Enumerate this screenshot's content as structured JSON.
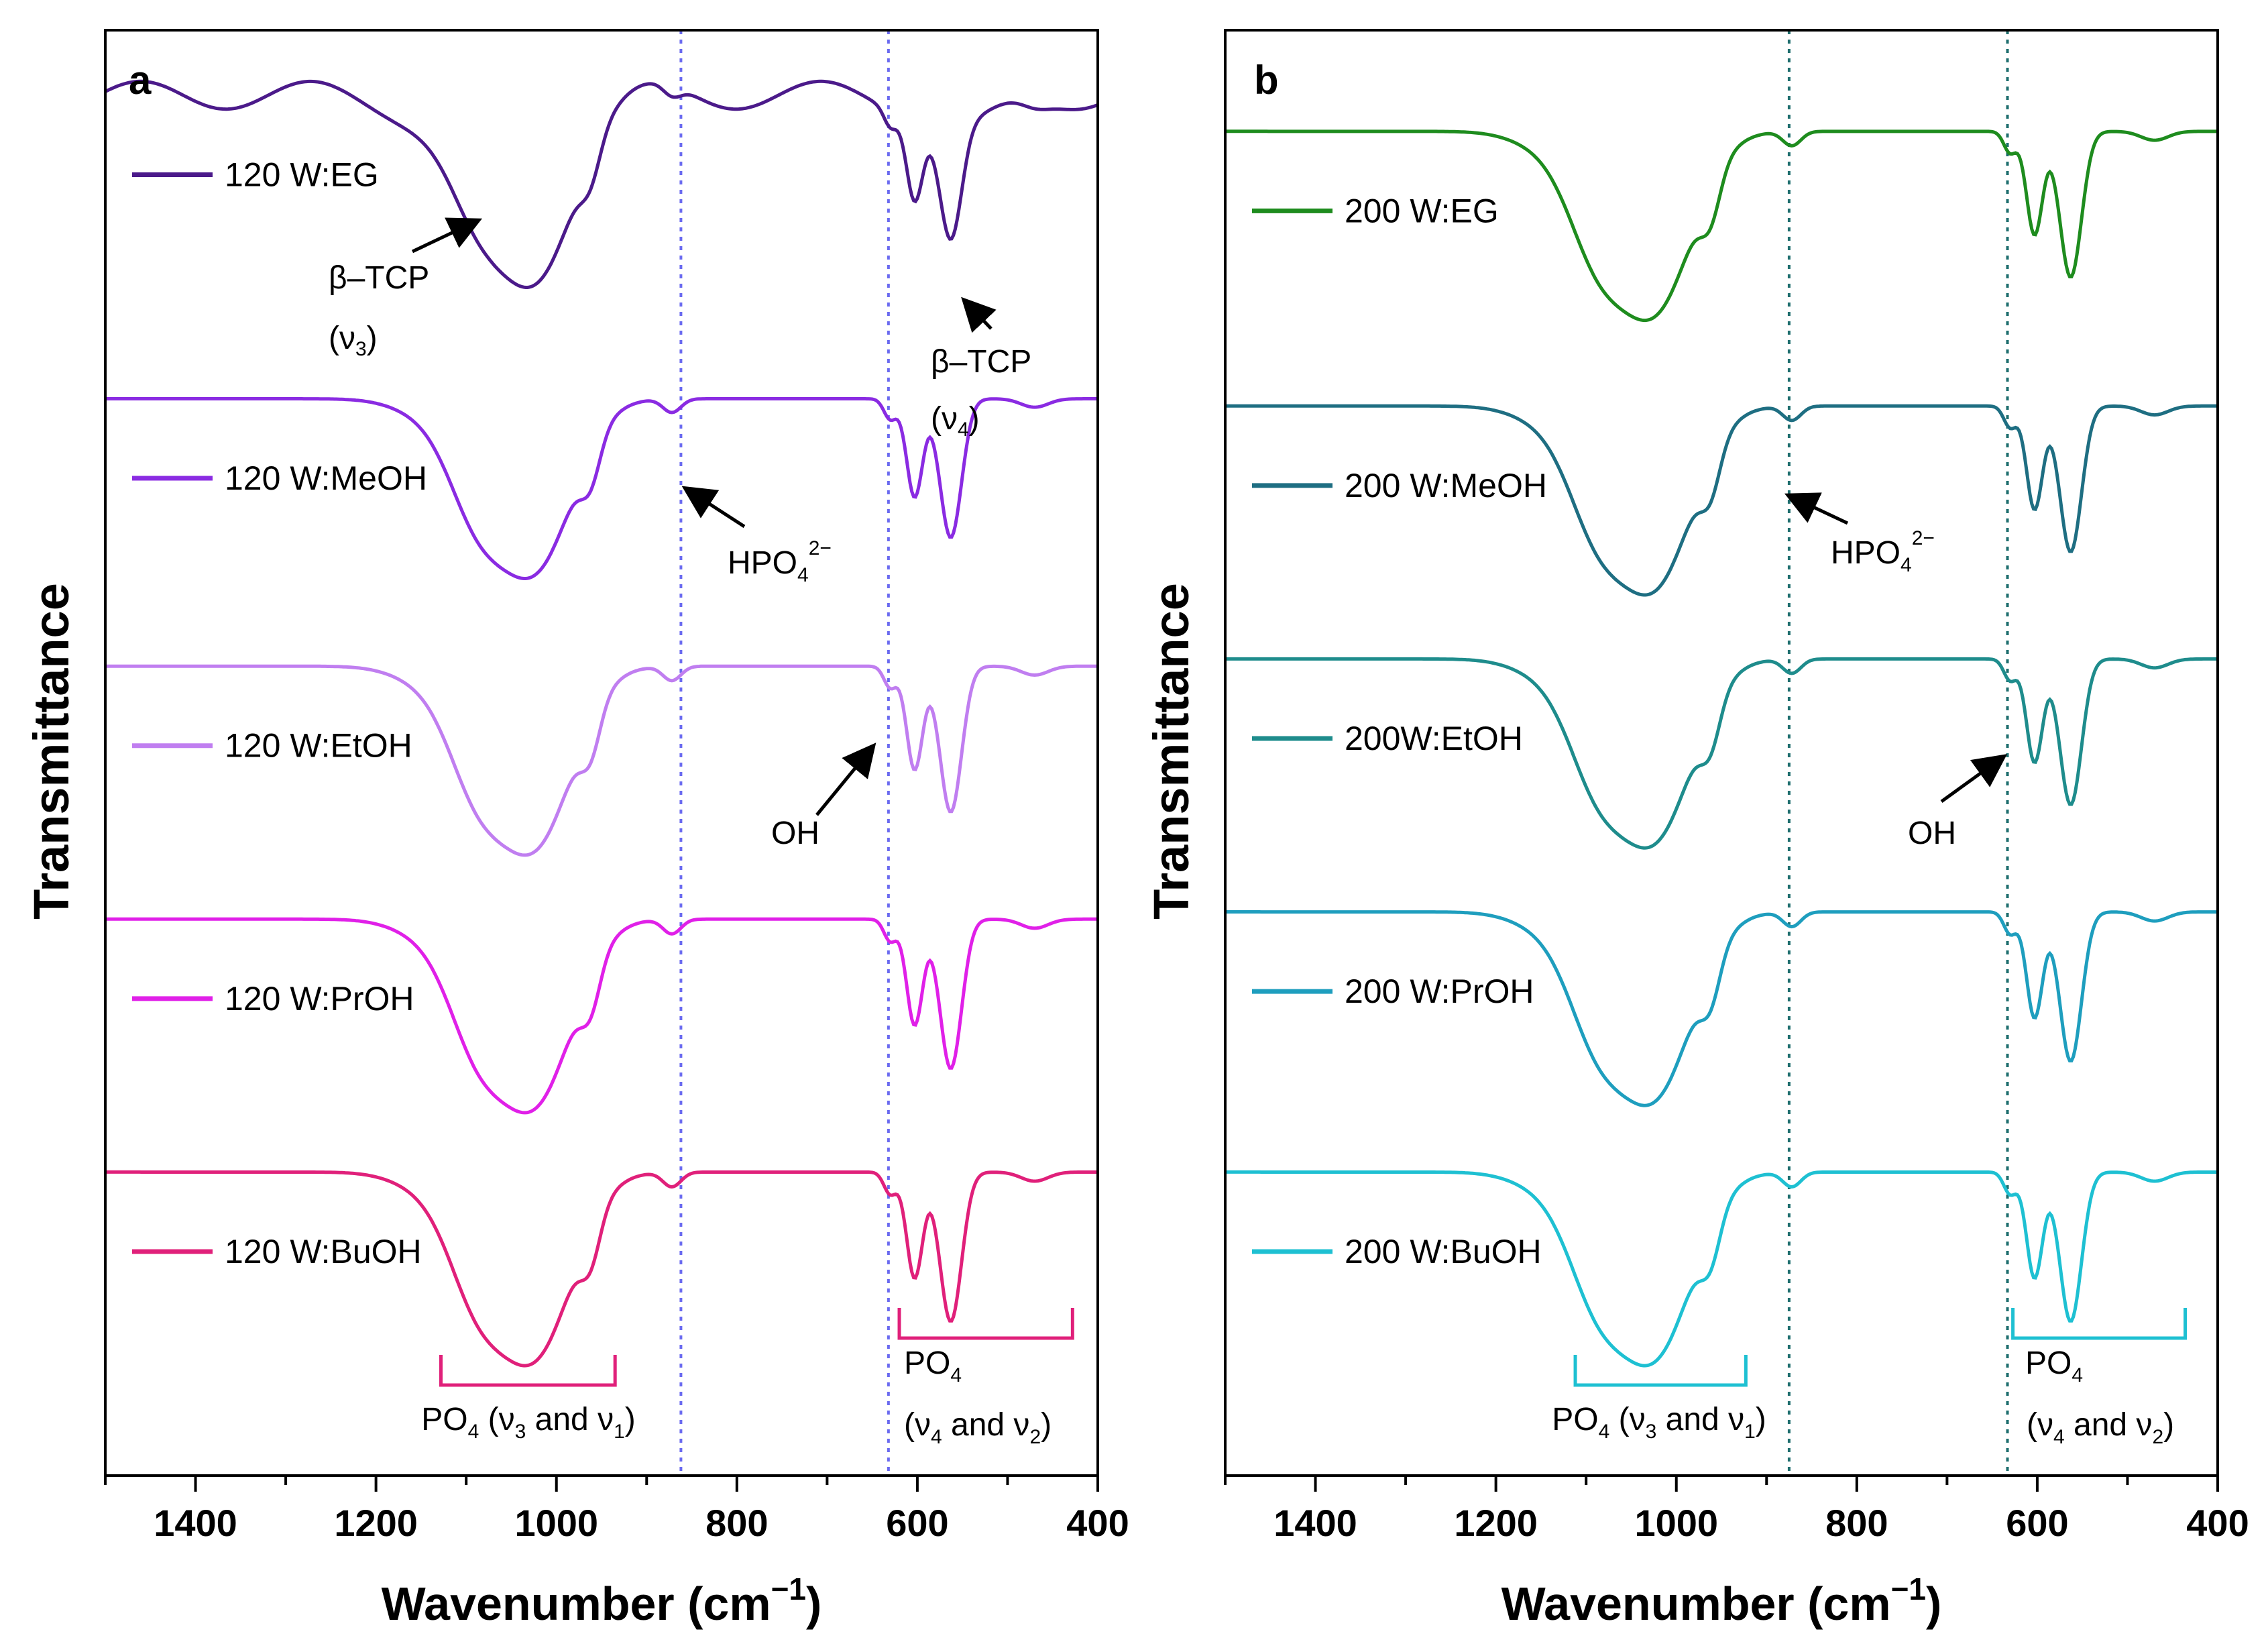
{
  "chart_data": [
    {
      "type": "line",
      "panel_label": "a",
      "xlabel": "Wavenumber (cm",
      "xlabel_sup": "−1",
      "xlabel_close": ")",
      "ylabel": "Transmittance",
      "xlim": [
        1500,
        400
      ],
      "xticks": [
        1400,
        1200,
        1000,
        800,
        600,
        400
      ],
      "xtick_labels": [
        "1400",
        "1200",
        "1000",
        "800",
        "600",
        "400"
      ],
      "ylim": [
        0,
        10
      ],
      "guide_lines": [
        862,
        632
      ],
      "guide_color": "#6a6af0",
      "series": [
        {
          "name": "120 W:EG",
          "color": "#4b1a8a",
          "baseline": 9.55,
          "depth": 0.64,
          "has_tcp": true
        },
        {
          "name": "120 W:MeOH",
          "color": "#8a2be2",
          "baseline": 7.45,
          "depth": 0.78
        },
        {
          "name": "120 W:EtOH",
          "color": "#c07ef0",
          "baseline": 5.6,
          "depth": 0.82
        },
        {
          "name": "120 W:PrOH",
          "color": "#e020e8",
          "baseline": 3.85,
          "depth": 0.84
        },
        {
          "name": "120 W:BuOH",
          "color": "#e0207a",
          "baseline": 2.1,
          "depth": 0.84
        }
      ],
      "annotations": {
        "tcp3_main": "β–TCP",
        "tcp3_mode": "(ν",
        "tcp3_sub": "3",
        "tcp3_close": ")",
        "tcp4_main": "β–TCP",
        "tcp4_mode": "(ν",
        "tcp4_sub": "4",
        "tcp4_close": ")",
        "hpo_main": "HPO",
        "hpo_sub": "4",
        "hpo_sup": "2−",
        "oh": "OH"
      },
      "bracket_color": "#e0207a",
      "bracket1": {
        "range": [
          1128,
          935
        ],
        "label_a": "PO",
        "label_sub": "4",
        "label_b": " (ν",
        "label_s3": "3",
        "label_c": " and ν",
        "label_s1": "1",
        "label_d": ")"
      },
      "bracket2": {
        "range": [
          620,
          428
        ],
        "line1_a": "PO",
        "line1_sub": "4",
        "line2_a": "(ν",
        "line2_s4": "4",
        "line2_b": " and ν",
        "line2_s2": "2",
        "line2_c": ")"
      }
    },
    {
      "type": "line",
      "panel_label": "b",
      "xlabel": "Wavenumber (cm",
      "xlabel_sup": "−1",
      "xlabel_close": ")",
      "ylabel": "Transmittance",
      "xlim": [
        1500,
        400
      ],
      "xticks": [
        1400,
        1200,
        1000,
        800,
        600,
        400
      ],
      "xtick_labels": [
        "1400",
        "1200",
        "1000",
        "800",
        "600",
        "400"
      ],
      "ylim": [
        0,
        10
      ],
      "guide_lines": [
        875,
        633
      ],
      "guide_color": "#1e6e6e",
      "series": [
        {
          "name": "200 W:EG",
          "color": "#1e8c1e",
          "baseline": 9.3,
          "depth": 0.82
        },
        {
          "name": "200 W:MeOH",
          "color": "#1e6e82",
          "baseline": 7.4,
          "depth": 0.82
        },
        {
          "name": "200W:EtOH",
          "color": "#1e8c8c",
          "baseline": 5.65,
          "depth": 0.82
        },
        {
          "name": "200 W:PrOH",
          "color": "#1e9ebe",
          "baseline": 3.9,
          "depth": 0.84
        },
        {
          "name": "200 W:BuOH",
          "color": "#1ec0d2",
          "baseline": 2.1,
          "depth": 0.84
        }
      ],
      "annotations": {
        "hpo_main": "HPO",
        "hpo_sub": "4",
        "hpo_sup": "2−",
        "oh": "OH"
      },
      "bracket_color": "#1ec0d2",
      "bracket1": {
        "range": [
          1112,
          923
        ],
        "label_a": "PO",
        "label_sub": "4",
        "label_b": " (ν",
        "label_s3": "3",
        "label_c": " and ν",
        "label_s1": "1",
        "label_d": ")"
      },
      "bracket2": {
        "range": [
          627,
          436
        ],
        "line1_a": "PO",
        "line1_sub": "4",
        "line2_a": "(ν",
        "line2_s4": "4",
        "line2_b": " and ν",
        "line2_s2": "2",
        "line2_c": ")"
      }
    }
  ]
}
